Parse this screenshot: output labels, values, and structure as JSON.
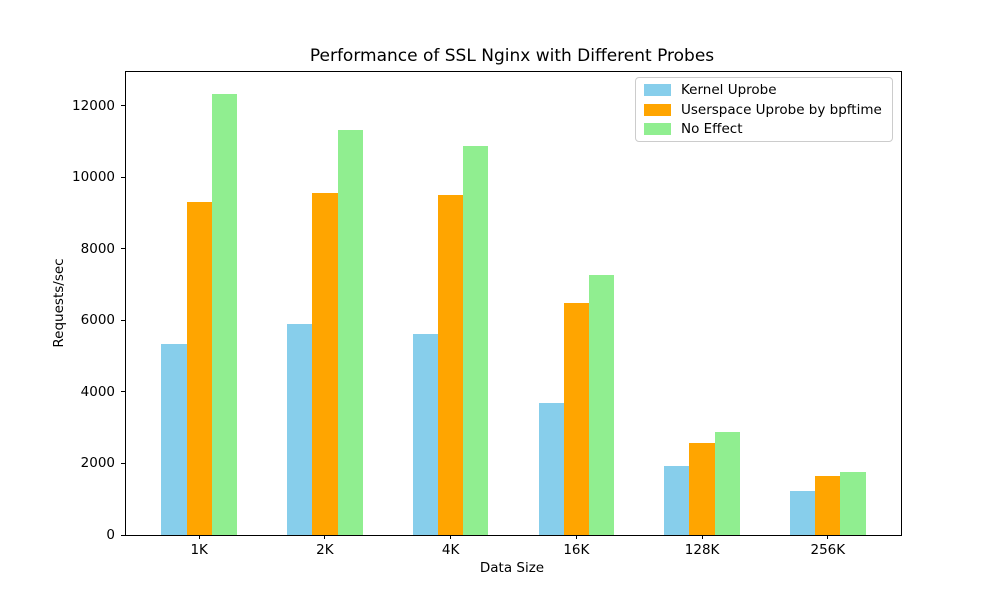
{
  "chart_data": {
    "type": "bar",
    "title": "Performance of SSL Nginx with Different Probes",
    "xlabel": "Data Size",
    "ylabel": "Requests/sec",
    "categories": [
      "1K",
      "2K",
      "4K",
      "16K",
      "128K",
      "256K"
    ],
    "series": [
      {
        "name": "Kernel Uprobe",
        "color": "#87CEEB",
        "values": [
          5330,
          5890,
          5620,
          3700,
          1930,
          1240
        ]
      },
      {
        "name": "Userspace Uprobe by bpftime",
        "color": "#FFA500",
        "values": [
          9320,
          9550,
          9500,
          6480,
          2570,
          1640
        ]
      },
      {
        "name": "No Effect",
        "color": "#90EE90",
        "values": [
          12320,
          11330,
          10880,
          7270,
          2880,
          1760
        ]
      }
    ],
    "ylim": [
      0,
      12940
    ],
    "yticks": [
      0,
      2000,
      4000,
      6000,
      8000,
      10000,
      12000
    ],
    "legend_position": "upper right",
    "grid": false
  }
}
